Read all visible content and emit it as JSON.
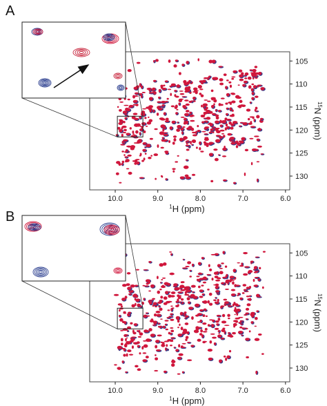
{
  "figure": {
    "colors": {
      "spectrum_red": "#d0173c",
      "spectrum_blue": "#2c3f8f",
      "inset_red_light": "#c8283f",
      "frame": "#444444",
      "arrow": "#111111"
    }
  },
  "chart_data": [
    {
      "type": "scatter",
      "panel": "A",
      "subtype": "2D 1H-15N HSQC overlay",
      "xlabel_sup": "1",
      "xlabel": "H (ppm)",
      "ylabel_sup": "15",
      "ylabel": "N (ppm)",
      "xlim": [
        10.6,
        5.9
      ],
      "ylim": [
        103,
        133
      ],
      "x_reversed": true,
      "y_reversed": true,
      "x_ticks": [
        "10.0",
        "9.0",
        "8.0",
        "7.0",
        "6.0"
      ],
      "x_tick_values": [
        10.0,
        9.0,
        8.0,
        7.0,
        6.0
      ],
      "y_ticks": [
        "105",
        "110",
        "115",
        "120",
        "125",
        "130"
      ],
      "y_tick_values": [
        105,
        110,
        115,
        120,
        125,
        130
      ],
      "grid": false,
      "series": [
        {
          "color": "blue"
        },
        {
          "color": "red"
        }
      ],
      "zoom_region": {
        "x": [
          9.95,
          9.35
        ],
        "y": [
          117.0,
          121.5
        ]
      },
      "inset_has_arrow": true
    },
    {
      "type": "scatter",
      "panel": "B",
      "subtype": "2D 1H-15N HSQC overlay",
      "xlabel_sup": "1",
      "xlabel": "H (ppm)",
      "ylabel_sup": "15",
      "ylabel": "N (ppm)",
      "xlim": [
        10.6,
        5.9
      ],
      "ylim": [
        103,
        133
      ],
      "x_reversed": true,
      "y_reversed": true,
      "x_ticks": [
        "10.0",
        "9.0",
        "8.0",
        "7.0",
        "6.0"
      ],
      "x_tick_values": [
        10.0,
        9.0,
        8.0,
        7.0,
        6.0
      ],
      "y_ticks": [
        "105",
        "110",
        "115",
        "120",
        "125",
        "130"
      ],
      "y_tick_values": [
        105,
        110,
        115,
        120,
        125,
        130
      ],
      "grid": false,
      "series": [
        {
          "color": "blue"
        },
        {
          "color": "red"
        }
      ],
      "zoom_region": {
        "x": [
          9.95,
          9.35
        ],
        "y": [
          117.0,
          121.5
        ]
      },
      "inset_has_arrow": false
    }
  ]
}
